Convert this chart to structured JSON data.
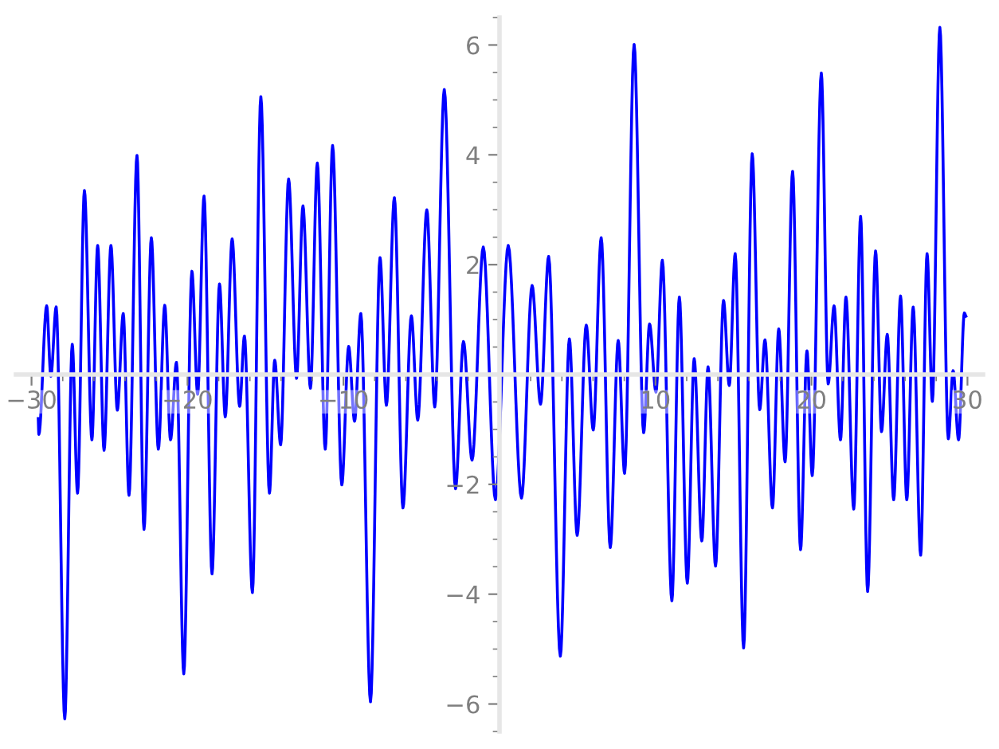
{
  "chart_data": {
    "type": "line",
    "x": [
      -29.57,
      -29.53,
      -29.03,
      -28.76,
      -28.42,
      -27.87,
      -27.39,
      -27.05,
      -26.61,
      -26.13,
      -25.76,
      -25.35,
      -24.91,
      -24.5,
      -24.12,
      -23.75,
      -23.24,
      -22.79,
      -22.32,
      -21.87,
      -21.46,
      -21.09,
      -20.71,
      -20.24,
      -19.72,
      -19.35,
      -18.94,
      -18.43,
      -17.95,
      -17.58,
      -17.14,
      -16.66,
      -16.35,
      -15.84,
      -15.3,
      -14.75,
      -14.41,
      -14.03,
      -13.52,
      -13.01,
      -12.6,
      -12.12,
      -11.68,
      -11.17,
      -10.7,
      -10.11,
      -9.67,
      -9.29,
      -8.89,
      -8.27,
      -7.66,
      -7.25,
      -6.74,
      -6.19,
      -5.65,
      -5.24,
      -4.66,
      -4.15,
      -3.54,
      -2.82,
      -2.31,
      -1.76,
      -1.04,
      -0.26,
      0.56,
      1.41,
      2.09,
      2.63,
      3.15,
      3.9,
      4.48,
      4.98,
      5.56,
      6.01,
      6.52,
      7.1,
      7.61,
      8.02,
      8.63,
      9.24,
      9.62,
      10.03,
      10.44,
      11.05,
      11.53,
      12.04,
      12.48,
      12.97,
      13.37,
      13.85,
      14.36,
      14.73,
      15.11,
      15.65,
      16.2,
      16.68,
      17.02,
      17.5,
      17.9,
      18.31,
      18.79,
      19.3,
      19.71,
      20.05,
      20.63,
      21.07,
      21.45,
      21.86,
      22.21,
      22.71,
      23.15,
      23.6,
      24.11,
      24.49,
      24.86,
      25.27,
      25.71,
      26.11,
      26.52,
      27.0,
      27.41,
      27.75,
      28.23,
      28.77,
      29.08,
      29.43,
      29.8,
      29.9
    ],
    "series": [
      {
        "color": "#0000ff",
        "values": [
          -0.8,
          -1.09,
          1.25,
          -0.03,
          1.23,
          -6.27,
          0.55,
          -2.16,
          3.35,
          -1.19,
          2.35,
          -1.38,
          2.35,
          -0.65,
          1.11,
          -2.2,
          3.99,
          -2.82,
          2.49,
          -1.36,
          1.26,
          -1.19,
          0.22,
          -5.45,
          1.88,
          -0.36,
          3.25,
          -3.63,
          1.65,
          -0.77,
          2.47,
          -0.58,
          0.7,
          -3.97,
          5.06,
          -2.16,
          0.26,
          -1.28,
          3.56,
          -0.07,
          3.07,
          -0.25,
          3.85,
          -1.36,
          4.17,
          -2.01,
          0.51,
          -0.85,
          1.11,
          -5.96,
          2.13,
          -0.56,
          3.22,
          -2.43,
          1.07,
          -0.83,
          3.0,
          -0.59,
          5.19,
          -2.08,
          0.6,
          -1.56,
          2.32,
          -2.28,
          2.35,
          -2.25,
          1.62,
          -0.54,
          2.15,
          -5.13,
          0.65,
          -2.93,
          0.9,
          -1.01,
          2.49,
          -3.15,
          0.62,
          -1.8,
          6.01,
          -1.06,
          0.92,
          -0.32,
          2.08,
          -4.12,
          1.41,
          -3.8,
          0.29,
          -3.03,
          0.14,
          -3.49,
          1.35,
          -0.2,
          2.2,
          -4.98,
          4.02,
          -0.64,
          0.63,
          -2.43,
          0.83,
          -1.59,
          3.7,
          -3.19,
          0.43,
          -1.84,
          5.49,
          -0.17,
          1.25,
          -1.19,
          1.41,
          -2.45,
          2.88,
          -3.95,
          2.25,
          -1.04,
          0.73,
          -2.28,
          1.43,
          -2.28,
          1.23,
          -3.29,
          2.2,
          -0.49,
          6.32,
          -1.17,
          0.07,
          -1.19,
          1.12,
          1.06
        ]
      }
    ],
    "xlim": [
      -31,
      31
    ],
    "ylim": [
      -6.5,
      6.5
    ],
    "xticks": [
      {
        "value": -30,
        "label": "−30"
      },
      {
        "value": -28,
        "label": null
      },
      {
        "value": -26,
        "label": null
      },
      {
        "value": -24,
        "label": null
      },
      {
        "value": -22,
        "label": null
      },
      {
        "value": -20,
        "label": "−20"
      },
      {
        "value": -18,
        "label": null
      },
      {
        "value": -16,
        "label": null
      },
      {
        "value": -14,
        "label": null
      },
      {
        "value": -12,
        "label": null
      },
      {
        "value": -10,
        "label": "−10"
      },
      {
        "value": -8,
        "label": null
      },
      {
        "value": -6,
        "label": null
      },
      {
        "value": -4,
        "label": null
      },
      {
        "value": -2,
        "label": null
      },
      {
        "value": 2,
        "label": null
      },
      {
        "value": 4,
        "label": null
      },
      {
        "value": 6,
        "label": null
      },
      {
        "value": 8,
        "label": null
      },
      10,
      {
        "value": 12,
        "label": null
      },
      {
        "value": 14,
        "label": null
      },
      {
        "value": 16,
        "label": null
      },
      {
        "value": 18,
        "label": null
      },
      20,
      {
        "value": 22,
        "label": null
      },
      {
        "value": 24,
        "label": null
      },
      {
        "value": 26,
        "label": null
      },
      {
        "value": 28,
        "label": null
      },
      30
    ],
    "yticks": [
      {
        "value": -6.5,
        "label": null
      },
      {
        "value": -6,
        "label": "−6"
      },
      {
        "value": -5.5,
        "label": null
      },
      {
        "value": -5,
        "label": null
      },
      {
        "value": -4.5,
        "label": null
      },
      {
        "value": -4,
        "label": "−4"
      },
      {
        "value": -3.5,
        "label": null
      },
      {
        "value": -3,
        "label": null
      },
      {
        "value": -2.5,
        "label": null
      },
      {
        "value": -2,
        "label": "−2"
      },
      {
        "value": -1.5,
        "label": null
      },
      {
        "value": -1,
        "label": null
      },
      {
        "value": -0.5,
        "label": null
      },
      {
        "value": 0.5,
        "label": null
      },
      {
        "value": 1,
        "label": null
      },
      {
        "value": 1.5,
        "label": null
      },
      2,
      {
        "value": 2.5,
        "label": null
      },
      {
        "value": 3,
        "label": null
      },
      {
        "value": 3.5,
        "label": null
      },
      4,
      {
        "value": 4.5,
        "label": null
      },
      {
        "value": 5,
        "label": null
      },
      {
        "value": 5.5,
        "label": null
      },
      6,
      {
        "value": 6.5,
        "label": null
      }
    ],
    "grid": false,
    "marker": "none",
    "line_style": "solid"
  }
}
